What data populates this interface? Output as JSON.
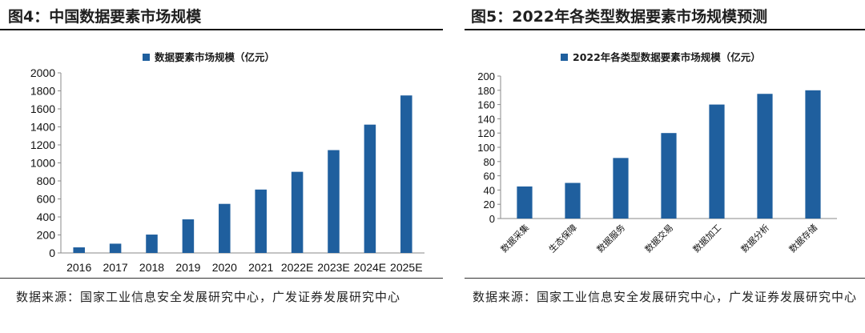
{
  "left": {
    "figure_title": "图4：中国数据要素市场规模",
    "source": "数据来源：国家工业信息安全发展研究中心，广发证券发展研究中心",
    "chart_data": {
      "type": "bar",
      "categories": [
        "2016",
        "2017",
        "2018",
        "2019",
        "2020",
        "2021",
        "2022E",
        "2023E",
        "2024E",
        "2025E"
      ],
      "series": [
        {
          "name": "数据要素市场规模（亿元）",
          "values": [
            62,
            103,
            204,
            373,
            545,
            704,
            901,
            1142,
            1425,
            1749
          ]
        }
      ],
      "ylim": [
        0,
        2000
      ],
      "yticks": [
        0,
        200,
        400,
        600,
        800,
        1000,
        1200,
        1400,
        1600,
        1800,
        2000
      ],
      "legend": "top-center",
      "bar_color": "#1f5f9e"
    }
  },
  "right": {
    "figure_title": "图5：2022年各类型数据要素市场规模预测",
    "source": "数据来源：国家工业信息安全发展研究中心，广发证券发展研究中心",
    "chart_data": {
      "type": "bar",
      "categories": [
        "数据采集",
        "生态保障",
        "数据服务",
        "数据交易",
        "数据加工",
        "数据分析",
        "数据存储"
      ],
      "series": [
        {
          "name": "2022年各类型数据要素市场规模（亿元）",
          "values": [
            45,
            50,
            85,
            120,
            160,
            175,
            180
          ]
        }
      ],
      "ylim": [
        0,
        200
      ],
      "yticks": [
        0,
        20,
        40,
        60,
        80,
        100,
        120,
        140,
        160,
        180,
        200
      ],
      "legend": "top-center",
      "bar_color": "#1f5f9e"
    }
  }
}
